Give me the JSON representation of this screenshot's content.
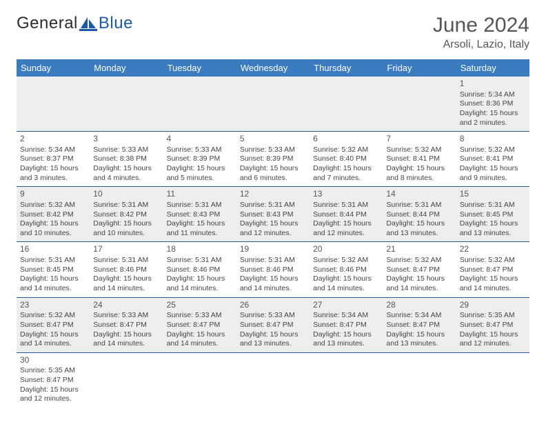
{
  "logo": {
    "text1": "General",
    "text2": "Blue",
    "color1": "#2c2c2c",
    "color2": "#1a5aa8"
  },
  "title": "June 2024",
  "location": "Arsoli, Lazio, Italy",
  "header_bg": "#3b7bbf",
  "header_fg": "#ffffff",
  "row_divider": "#2b5a8a",
  "alt_row_bg": "#eeeeee",
  "day_headers": [
    "Sunday",
    "Monday",
    "Tuesday",
    "Wednesday",
    "Thursday",
    "Friday",
    "Saturday"
  ],
  "weeks": [
    [
      null,
      null,
      null,
      null,
      null,
      null,
      {
        "n": "1",
        "sr": "5:34 AM",
        "ss": "8:36 PM",
        "dl": "15 hours and 2 minutes."
      }
    ],
    [
      {
        "n": "2",
        "sr": "5:34 AM",
        "ss": "8:37 PM",
        "dl": "15 hours and 3 minutes."
      },
      {
        "n": "3",
        "sr": "5:33 AM",
        "ss": "8:38 PM",
        "dl": "15 hours and 4 minutes."
      },
      {
        "n": "4",
        "sr": "5:33 AM",
        "ss": "8:39 PM",
        "dl": "15 hours and 5 minutes."
      },
      {
        "n": "5",
        "sr": "5:33 AM",
        "ss": "8:39 PM",
        "dl": "15 hours and 6 minutes."
      },
      {
        "n": "6",
        "sr": "5:32 AM",
        "ss": "8:40 PM",
        "dl": "15 hours and 7 minutes."
      },
      {
        "n": "7",
        "sr": "5:32 AM",
        "ss": "8:41 PM",
        "dl": "15 hours and 8 minutes."
      },
      {
        "n": "8",
        "sr": "5:32 AM",
        "ss": "8:41 PM",
        "dl": "15 hours and 9 minutes."
      }
    ],
    [
      {
        "n": "9",
        "sr": "5:32 AM",
        "ss": "8:42 PM",
        "dl": "15 hours and 10 minutes."
      },
      {
        "n": "10",
        "sr": "5:31 AM",
        "ss": "8:42 PM",
        "dl": "15 hours and 10 minutes."
      },
      {
        "n": "11",
        "sr": "5:31 AM",
        "ss": "8:43 PM",
        "dl": "15 hours and 11 minutes."
      },
      {
        "n": "12",
        "sr": "5:31 AM",
        "ss": "8:43 PM",
        "dl": "15 hours and 12 minutes."
      },
      {
        "n": "13",
        "sr": "5:31 AM",
        "ss": "8:44 PM",
        "dl": "15 hours and 12 minutes."
      },
      {
        "n": "14",
        "sr": "5:31 AM",
        "ss": "8:44 PM",
        "dl": "15 hours and 13 minutes."
      },
      {
        "n": "15",
        "sr": "5:31 AM",
        "ss": "8:45 PM",
        "dl": "15 hours and 13 minutes."
      }
    ],
    [
      {
        "n": "16",
        "sr": "5:31 AM",
        "ss": "8:45 PM",
        "dl": "15 hours and 14 minutes."
      },
      {
        "n": "17",
        "sr": "5:31 AM",
        "ss": "8:46 PM",
        "dl": "15 hours and 14 minutes."
      },
      {
        "n": "18",
        "sr": "5:31 AM",
        "ss": "8:46 PM",
        "dl": "15 hours and 14 minutes."
      },
      {
        "n": "19",
        "sr": "5:31 AM",
        "ss": "8:46 PM",
        "dl": "15 hours and 14 minutes."
      },
      {
        "n": "20",
        "sr": "5:32 AM",
        "ss": "8:46 PM",
        "dl": "15 hours and 14 minutes."
      },
      {
        "n": "21",
        "sr": "5:32 AM",
        "ss": "8:47 PM",
        "dl": "15 hours and 14 minutes."
      },
      {
        "n": "22",
        "sr": "5:32 AM",
        "ss": "8:47 PM",
        "dl": "15 hours and 14 minutes."
      }
    ],
    [
      {
        "n": "23",
        "sr": "5:32 AM",
        "ss": "8:47 PM",
        "dl": "15 hours and 14 minutes."
      },
      {
        "n": "24",
        "sr": "5:33 AM",
        "ss": "8:47 PM",
        "dl": "15 hours and 14 minutes."
      },
      {
        "n": "25",
        "sr": "5:33 AM",
        "ss": "8:47 PM",
        "dl": "15 hours and 14 minutes."
      },
      {
        "n": "26",
        "sr": "5:33 AM",
        "ss": "8:47 PM",
        "dl": "15 hours and 13 minutes."
      },
      {
        "n": "27",
        "sr": "5:34 AM",
        "ss": "8:47 PM",
        "dl": "15 hours and 13 minutes."
      },
      {
        "n": "28",
        "sr": "5:34 AM",
        "ss": "8:47 PM",
        "dl": "15 hours and 13 minutes."
      },
      {
        "n": "29",
        "sr": "5:35 AM",
        "ss": "8:47 PM",
        "dl": "15 hours and 12 minutes."
      }
    ],
    [
      {
        "n": "30",
        "sr": "5:35 AM",
        "ss": "8:47 PM",
        "dl": "15 hours and 12 minutes."
      },
      null,
      null,
      null,
      null,
      null,
      null
    ]
  ],
  "labels": {
    "sunrise": "Sunrise: ",
    "sunset": "Sunset: ",
    "daylight": "Daylight: "
  }
}
